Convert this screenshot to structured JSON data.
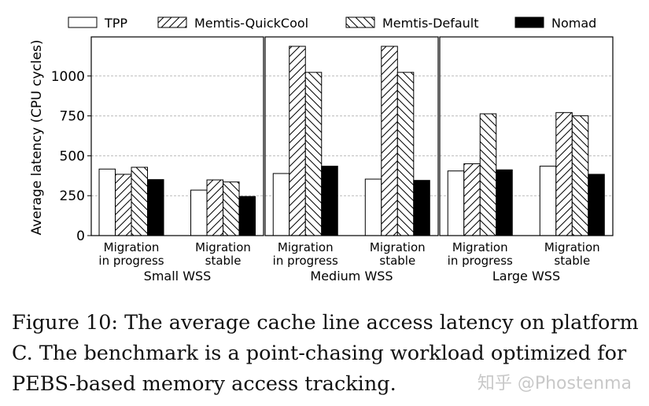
{
  "chart_data": {
    "type": "bar",
    "ylabel": "Average latency (CPU cycles)",
    "ylim": [
      0,
      1245
    ],
    "yticks": [
      0,
      250,
      500,
      750,
      1000
    ],
    "grid": "horizontal dashed",
    "legend_placement": "top",
    "panels": [
      {
        "title": "Small WSS",
        "categories": [
          "Migration\nin progress",
          "Migration\nstable"
        ]
      },
      {
        "title": "Medium WSS",
        "categories": [
          "Migration\nin progress",
          "Migration\nstable"
        ]
      },
      {
        "title": "Large WSS",
        "categories": [
          "Migration\nin progress",
          "Migration\nstable"
        ]
      }
    ],
    "series": [
      {
        "name": "TPP",
        "pattern": "none",
        "values": [
          [
            417,
            285
          ],
          [
            389,
            354
          ],
          [
            405,
            435
          ]
        ]
      },
      {
        "name": "Memtis-QuickCool",
        "pattern": "forward-hatch",
        "values": [
          [
            384,
            349
          ],
          [
            1186,
            1186
          ],
          [
            450,
            771
          ]
        ]
      },
      {
        "name": "Memtis-Default",
        "pattern": "back-hatch",
        "values": [
          [
            428,
            336
          ],
          [
            1023,
            1023
          ],
          [
            763,
            751
          ]
        ]
      },
      {
        "name": "Nomad",
        "pattern": "solid-black",
        "values": [
          [
            351,
            245
          ],
          [
            435,
            346
          ],
          [
            412,
            384
          ]
        ]
      }
    ]
  },
  "caption": "Figure 10: The average cache line access latency on platform C. The benchmark is a point-chasing workload optimized for PEBS-based memory access tracking.",
  "watermark": "知乎 @Phostenma"
}
